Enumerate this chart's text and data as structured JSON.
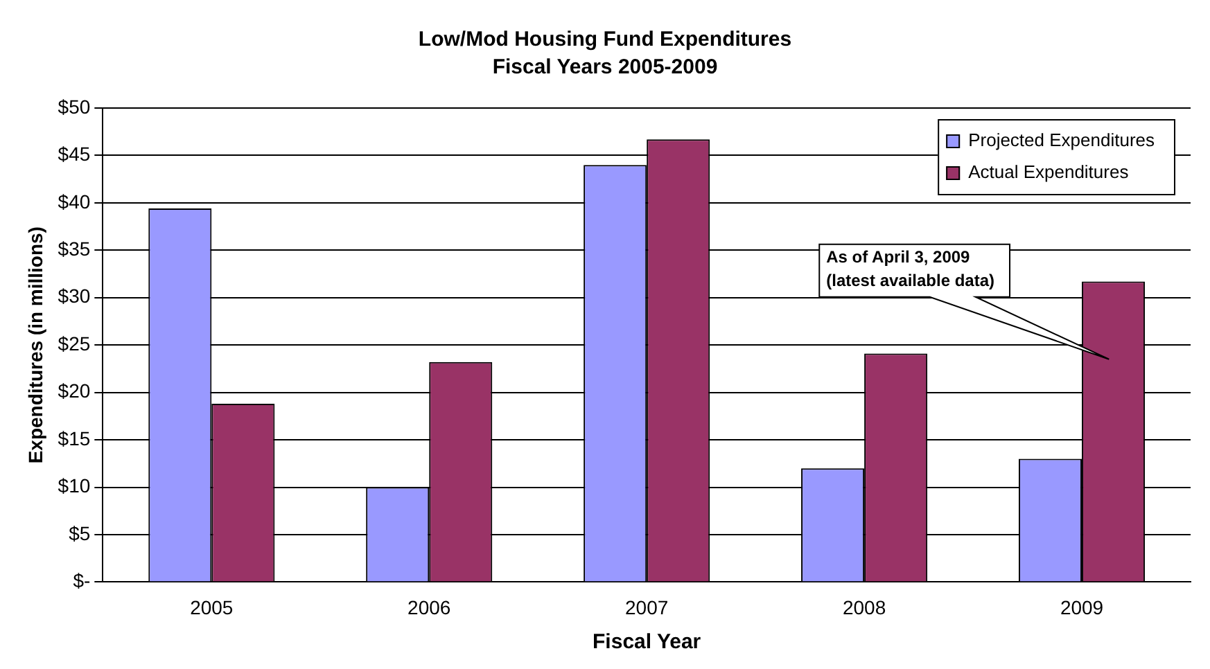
{
  "chart_data": {
    "type": "bar",
    "title": "Low/Mod Housing Fund Expenditures",
    "subtitle": "Fiscal Years 2005-2009",
    "xlabel": "Fiscal Year",
    "ylabel": "Expenditures (in millions)",
    "categories": [
      "2005",
      "2006",
      "2007",
      "2008",
      "2009"
    ],
    "series": [
      {
        "name": "Projected Expenditures",
        "color": "#9999ff",
        "values": [
          39.4,
          10.0,
          44.0,
          12.0,
          13.0
        ]
      },
      {
        "name": "Actual Expenditures",
        "color": "#993366",
        "values": [
          18.8,
          23.2,
          46.7,
          24.1,
          31.7
        ]
      }
    ],
    "ylim": [
      0,
      50
    ],
    "yticks": [
      {
        "value": 0,
        "label": "$-"
      },
      {
        "value": 5,
        "label": "$5"
      },
      {
        "value": 10,
        "label": "$10"
      },
      {
        "value": 15,
        "label": "$15"
      },
      {
        "value": 20,
        "label": "$20"
      },
      {
        "value": 25,
        "label": "$25"
      },
      {
        "value": 30,
        "label": "$30"
      },
      {
        "value": 35,
        "label": "$35"
      },
      {
        "value": 40,
        "label": "$40"
      },
      {
        "value": 45,
        "label": "$45"
      },
      {
        "value": 50,
        "label": "$50"
      }
    ],
    "grid": "y",
    "legend": "top right",
    "annotations": [
      "As of April 3, 2009\n(latest available data)"
    ]
  }
}
